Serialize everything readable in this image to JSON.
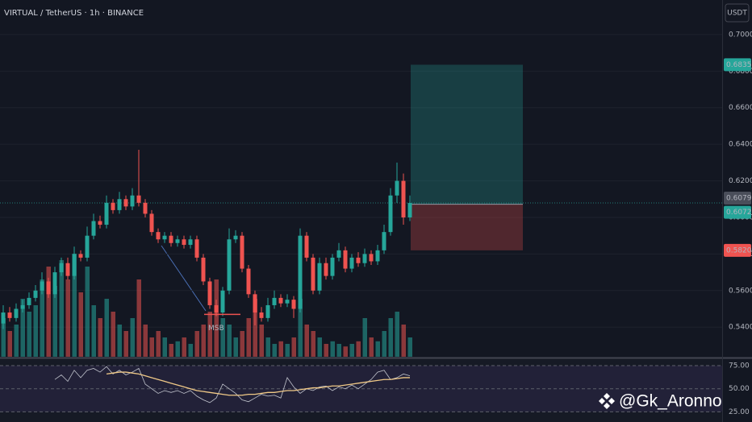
{
  "header": {
    "title": "VIRTUAL / TetherUS · 1h · BINANCE",
    "currency": "USDT"
  },
  "watermark": "@Gk_Aronno",
  "chart_data": {
    "type": "candlestick",
    "open": [
      0.542,
      0.548,
      0.545,
      0.55,
      0.552,
      0.556,
      0.56,
      0.565,
      0.558,
      0.57,
      0.575,
      0.568,
      0.58,
      0.578,
      0.59,
      0.598,
      0.596,
      0.608,
      0.604,
      0.61,
      0.606,
      0.612,
      0.608,
      0.602,
      0.592,
      0.588,
      0.59,
      0.586,
      0.588,
      0.585,
      0.588,
      0.578,
      0.565,
      0.552,
      0.548,
      0.56,
      0.588,
      0.59,
      0.572,
      0.558,
      0.548,
      0.545,
      0.552,
      0.556,
      0.553,
      0.555,
      0.55,
      0.59,
      0.578,
      0.56,
      0.575,
      0.568,
      0.578,
      0.582,
      0.572,
      0.578,
      0.575,
      0.58,
      0.576,
      0.582,
      0.592,
      0.612,
      0.62,
      0.6
    ],
    "high": [
      0.552,
      0.551,
      0.553,
      0.555,
      0.559,
      0.563,
      0.57,
      0.567,
      0.573,
      0.578,
      0.578,
      0.584,
      0.582,
      0.595,
      0.602,
      0.601,
      0.612,
      0.61,
      0.614,
      0.612,
      0.616,
      0.637,
      0.61,
      0.604,
      0.594,
      0.592,
      0.592,
      0.59,
      0.59,
      0.59,
      0.59,
      0.58,
      0.567,
      0.555,
      0.562,
      0.594,
      0.593,
      0.592,
      0.574,
      0.56,
      0.551,
      0.556,
      0.56,
      0.558,
      0.558,
      0.557,
      0.594,
      0.592,
      0.58,
      0.578,
      0.578,
      0.58,
      0.586,
      0.584,
      0.58,
      0.581,
      0.583,
      0.582,
      0.585,
      0.596,
      0.616,
      0.63,
      0.624,
      0.612
    ],
    "low": [
      0.539,
      0.543,
      0.543,
      0.548,
      0.55,
      0.554,
      0.558,
      0.556,
      0.556,
      0.568,
      0.566,
      0.566,
      0.576,
      0.576,
      0.588,
      0.594,
      0.594,
      0.602,
      0.602,
      0.604,
      0.604,
      0.606,
      0.6,
      0.59,
      0.586,
      0.586,
      0.584,
      0.584,
      0.583,
      0.583,
      0.576,
      0.563,
      0.55,
      0.546,
      0.546,
      0.558,
      0.586,
      0.57,
      0.556,
      0.541,
      0.543,
      0.543,
      0.55,
      0.551,
      0.551,
      0.545,
      0.548,
      0.576,
      0.558,
      0.558,
      0.566,
      0.566,
      0.576,
      0.57,
      0.57,
      0.573,
      0.573,
      0.574,
      0.574,
      0.58,
      0.59,
      0.608,
      0.596,
      0.598
    ],
    "close": [
      0.548,
      0.545,
      0.55,
      0.552,
      0.556,
      0.56,
      0.565,
      0.558,
      0.57,
      0.575,
      0.568,
      0.58,
      0.578,
      0.59,
      0.598,
      0.596,
      0.608,
      0.604,
      0.61,
      0.606,
      0.612,
      0.608,
      0.602,
      0.592,
      0.588,
      0.59,
      0.586,
      0.588,
      0.585,
      0.588,
      0.578,
      0.565,
      0.552,
      0.548,
      0.56,
      0.588,
      0.59,
      0.572,
      0.558,
      0.548,
      0.545,
      0.552,
      0.556,
      0.553,
      0.555,
      0.55,
      0.59,
      0.578,
      0.56,
      0.575,
      0.568,
      0.578,
      0.582,
      0.572,
      0.578,
      0.575,
      0.58,
      0.576,
      0.582,
      0.592,
      0.612,
      0.62,
      0.6,
      0.6079
    ],
    "volume": [
      30,
      20,
      25,
      45,
      35,
      40,
      60,
      70,
      55,
      75,
      60,
      80,
      50,
      70,
      40,
      30,
      45,
      35,
      25,
      20,
      30,
      60,
      25,
      15,
      20,
      15,
      10,
      12,
      15,
      10,
      20,
      25,
      35,
      60,
      30,
      25,
      15,
      20,
      30,
      45,
      25,
      15,
      10,
      12,
      10,
      15,
      45,
      25,
      20,
      15,
      10,
      12,
      10,
      8,
      10,
      12,
      30,
      15,
      12,
      20,
      30,
      35,
      25,
      15
    ],
    "up_color": "#26a69a",
    "down_color": "#ef5350",
    "ylim": [
      0.5238,
      0.7189
    ],
    "yticks": [
      {
        "value": 0.7,
        "label": "0.7000"
      },
      {
        "value": 0.68,
        "label": "0.6800"
      },
      {
        "value": 0.66,
        "label": "0.6600"
      },
      {
        "value": 0.64,
        "label": "0.6400"
      },
      {
        "value": 0.62,
        "label": "0.6200"
      },
      {
        "value": 0.6,
        "label": "0.6000"
      },
      {
        "value": 0.58,
        "label": "0.5800"
      },
      {
        "value": 0.56,
        "label": "0.5600"
      },
      {
        "value": 0.54,
        "label": "0.5400"
      }
    ],
    "grid": true,
    "position": {
      "target": {
        "value": 0.6835,
        "label": "0.6835"
      },
      "entry": {
        "value": 0.6072,
        "label": "0.6072"
      },
      "stop": {
        "value": 0.582,
        "label": "0.5820"
      }
    },
    "last_price": {
      "value": 0.6079,
      "label": "0.6079"
    },
    "annotation": {
      "text": "MSB",
      "price": 0.547
    },
    "rsi": {
      "values": [
        null,
        null,
        null,
        null,
        null,
        null,
        null,
        null,
        60,
        65,
        58,
        70,
        62,
        70,
        72,
        68,
        74,
        66,
        70,
        65,
        68,
        72,
        55,
        50,
        45,
        48,
        46,
        48,
        45,
        48,
        42,
        38,
        35,
        40,
        55,
        50,
        45,
        38,
        36,
        40,
        44,
        42,
        43,
        40,
        62,
        52,
        45,
        50,
        48,
        52,
        53,
        48,
        52,
        50,
        54,
        50,
        55,
        60,
        68,
        70,
        60,
        62,
        66,
        64
      ],
      "ma": [
        null,
        null,
        null,
        null,
        null,
        null,
        null,
        null,
        null,
        null,
        null,
        null,
        null,
        null,
        null,
        null,
        66,
        67,
        68,
        68,
        67,
        66,
        64,
        62,
        60,
        58,
        56,
        54,
        52,
        50,
        48,
        47,
        46,
        45,
        44,
        43,
        43,
        43,
        44,
        44,
        45,
        46,
        46,
        47,
        48,
        48,
        49,
        50,
        51,
        51,
        52,
        53,
        53,
        54,
        55,
        56,
        57,
        58,
        59,
        60,
        60,
        61,
        62,
        62
      ],
      "ylim": [
        14,
        82
      ],
      "yticks": [
        {
          "value": 75,
          "label": "75.00"
        },
        {
          "value": 50,
          "label": "50.00"
        },
        {
          "value": 25,
          "label": "25.00"
        }
      ]
    }
  }
}
